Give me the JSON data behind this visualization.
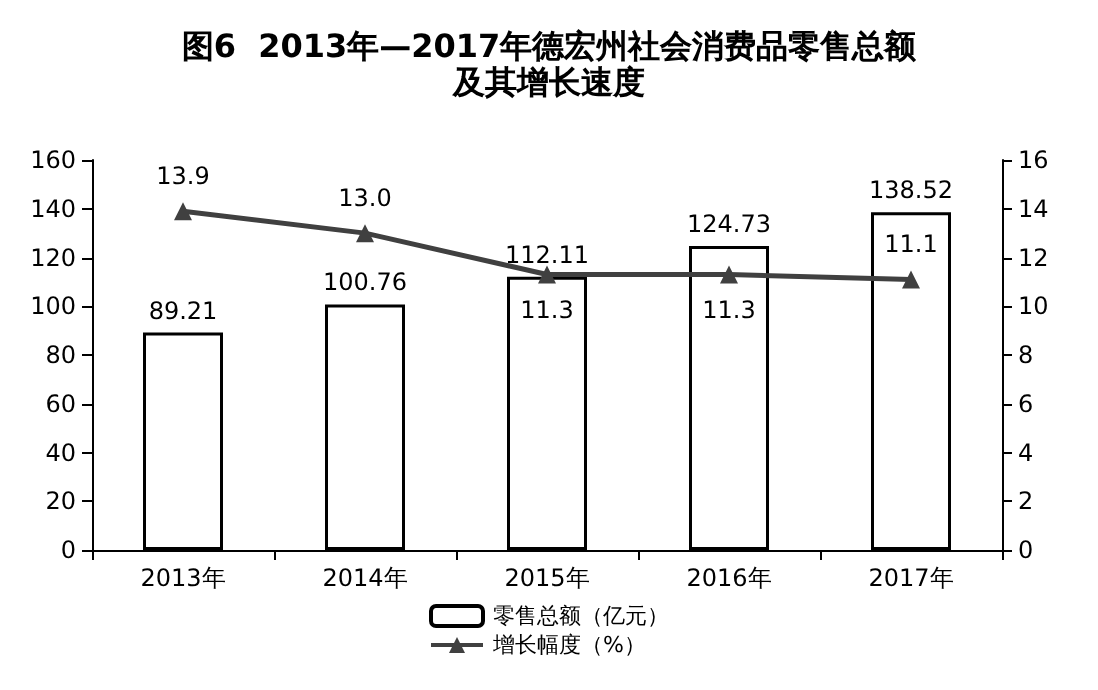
{
  "chart_data": {
    "type": "bar",
    "title": "图6  2013年—2017年德宏州社会消费品零售总额",
    "subtitle": "及其增长速度",
    "categories": [
      "2013年",
      "2014年",
      "2015年",
      "2016年",
      "2017年"
    ],
    "series": [
      {
        "name": "零售总额（亿元）",
        "color": "#ffffff",
        "values": [
          89.21,
          100.76,
          112.11,
          124.73,
          138.52
        ]
      },
      {
        "name": "增长幅度（%）",
        "type": "line",
        "axis": "y2",
        "color": "#404040",
        "marker": "triangle",
        "values": [
          13.9,
          13.0,
          11.3,
          11.3,
          11.1
        ]
      }
    ],
    "ylim": [
      0,
      160
    ],
    "yticks": [
      0,
      20,
      40,
      60,
      80,
      100,
      120,
      140,
      160
    ],
    "y2lim": [
      0,
      16
    ],
    "y2ticks": [
      0,
      2,
      4,
      6,
      8,
      10,
      12,
      14,
      16
    ],
    "value_labels": [
      [
        "89.21",
        "100.76",
        "112.11",
        "124.73",
        "138.52"
      ],
      [
        "13.9",
        "13.0",
        "11.3",
        "11.3",
        "11.1"
      ]
    ],
    "legend": "bottom",
    "grid": false
  }
}
